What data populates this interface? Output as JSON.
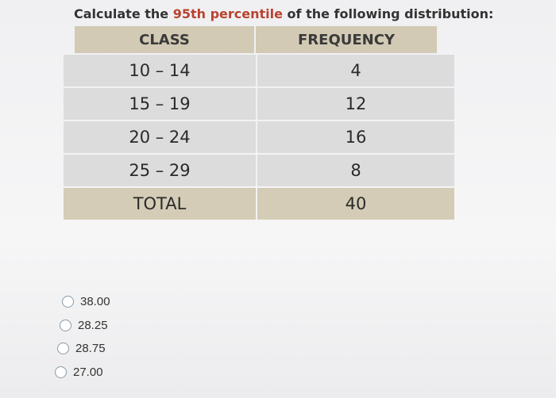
{
  "question": [
    "Calculate the ",
    "95th percentile",
    " of the following distribution:"
  ],
  "table": {
    "header": [
      "CLASS",
      "FREQUENCY"
    ],
    "rows": [
      [
        "10 – 14",
        "4"
      ],
      [
        "15 – 19",
        "12"
      ],
      [
        "20 – 24",
        "16"
      ],
      [
        "25 – 29",
        "8"
      ]
    ],
    "total": [
      "TOTAL",
      "40"
    ]
  },
  "options": [
    "38.00",
    "28.25",
    "28.75",
    "27.00"
  ]
}
